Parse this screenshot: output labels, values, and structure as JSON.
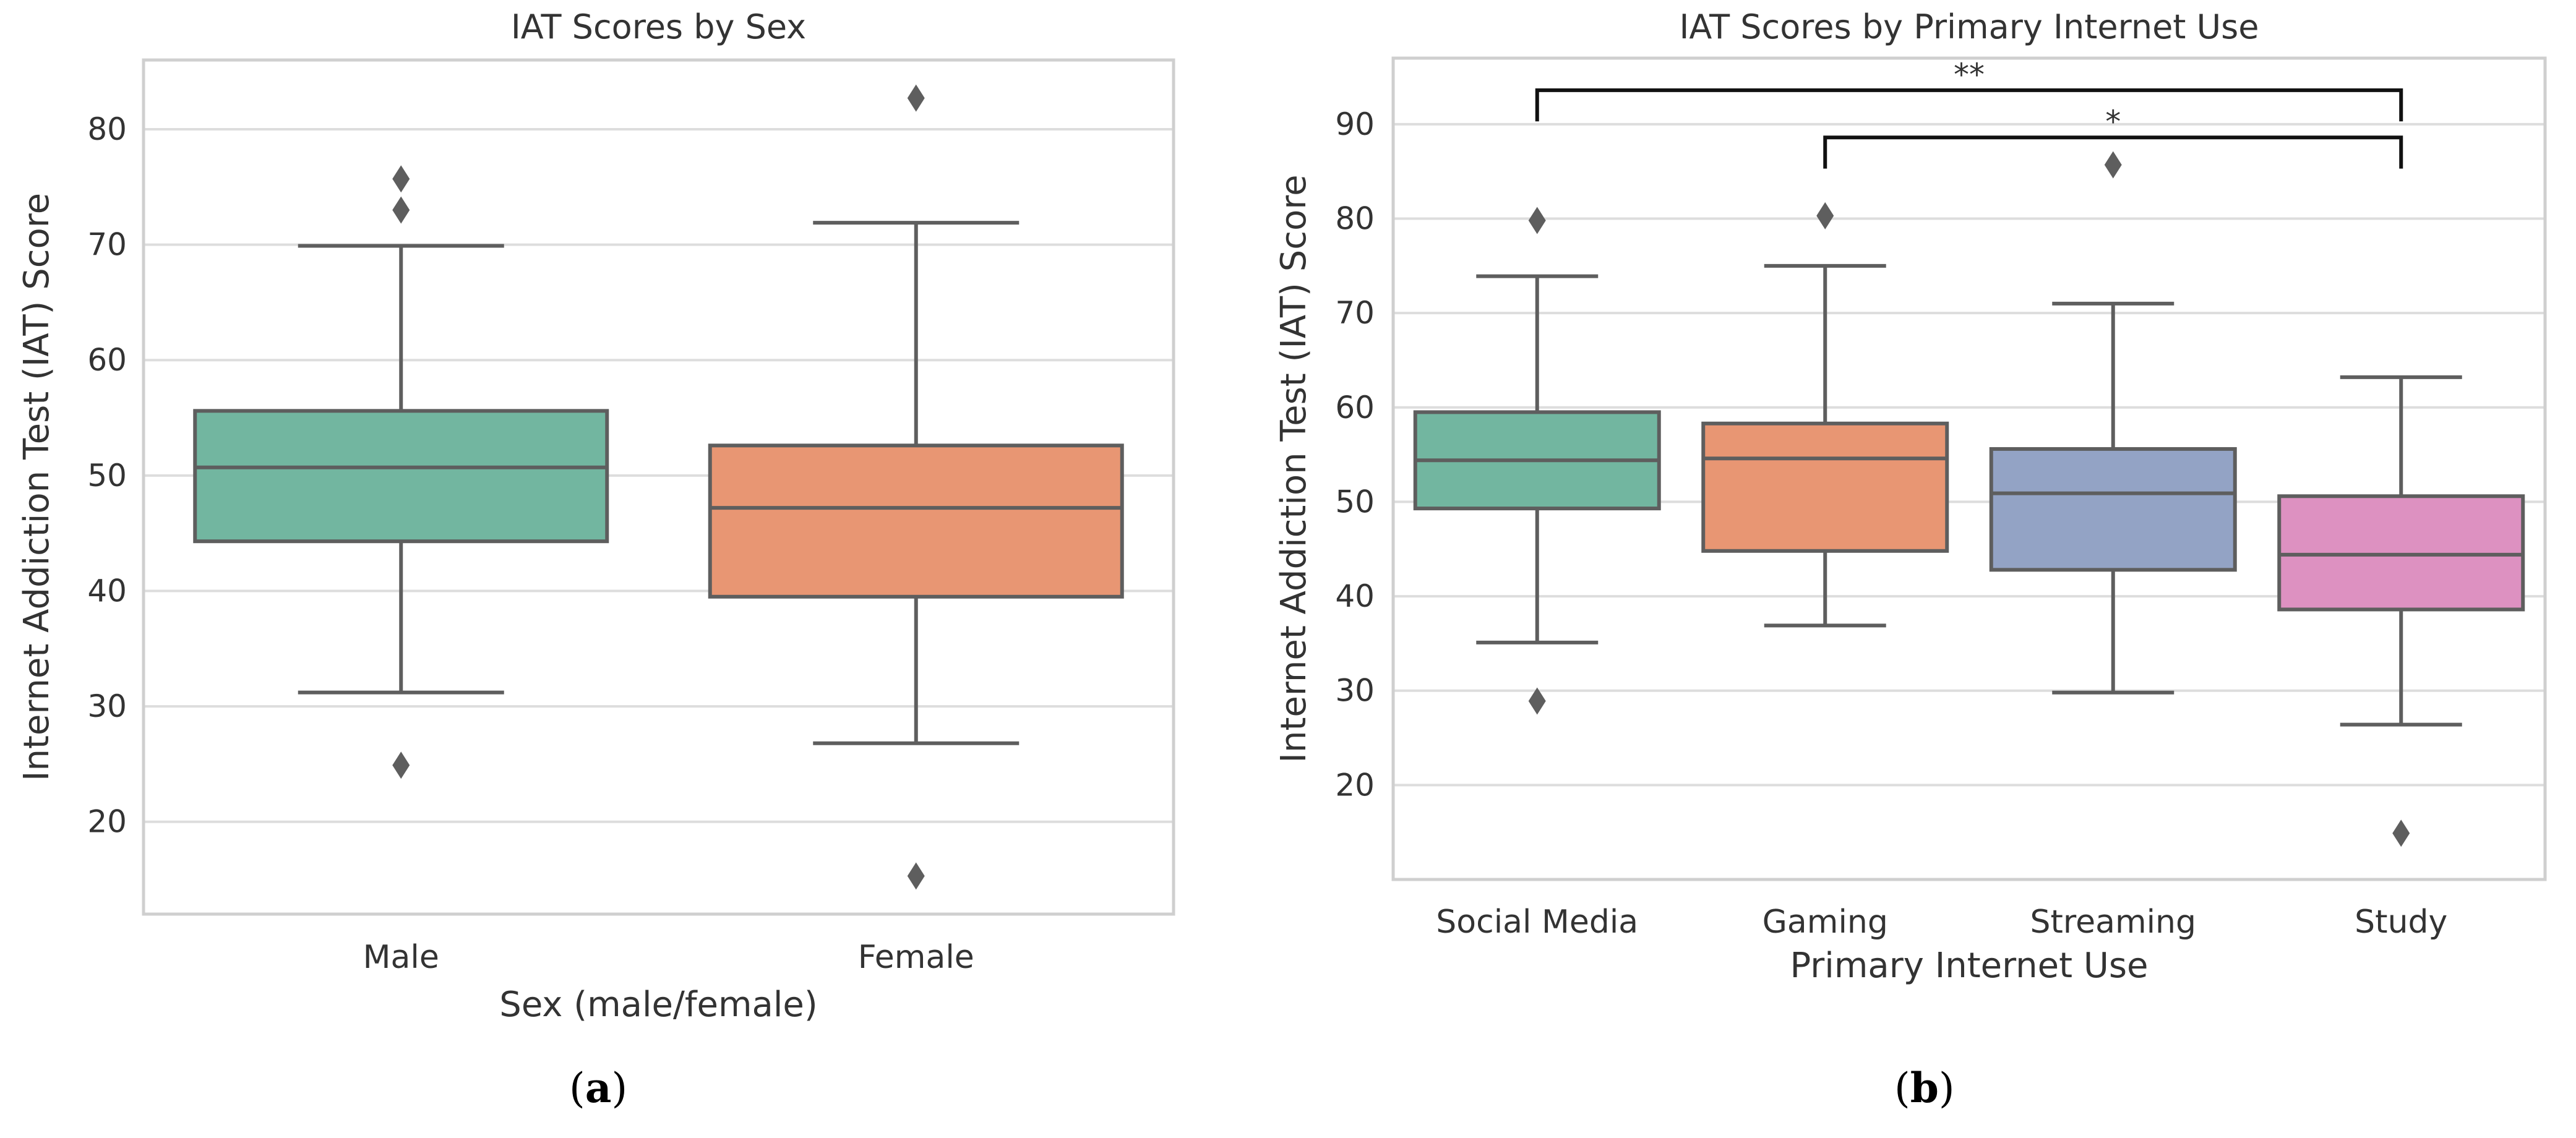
{
  "colors": {
    "green": "#72b6a0",
    "orange": "#e89673",
    "blue": "#93a3c5",
    "pink": "#dd91c1",
    "box_edge": "#5e5e5e",
    "grid": "#dddddd",
    "frame": "#cfcfcf",
    "bracket": "#111111"
  },
  "panel_labels": {
    "a": "a",
    "b": "b"
  },
  "chart_data": [
    {
      "type": "box",
      "title": "IAT Scores by Sex",
      "xlabel": "Sex (male/female)",
      "ylabel": "Internet Addiction Test (IAT) Score",
      "ylim": [
        12,
        86
      ],
      "yticks": [
        20,
        30,
        40,
        50,
        60,
        70,
        80
      ],
      "grid": true,
      "categories": [
        "Male",
        "Female"
      ],
      "colors": [
        "#72b6a0",
        "#e89673"
      ],
      "boxes": [
        {
          "name": "Male",
          "whisker_low": 31.2,
          "q1": 44.3,
          "median": 50.7,
          "q3": 55.6,
          "whisker_high": 69.9,
          "outliers": [
            75.7,
            73.0,
            24.9
          ]
        },
        {
          "name": "Female",
          "whisker_low": 26.8,
          "q1": 39.5,
          "median": 47.2,
          "q3": 52.6,
          "whisker_high": 71.9,
          "outliers": [
            82.7,
            15.3
          ]
        }
      ],
      "annotations": []
    },
    {
      "type": "box",
      "title": "IAT Scores by Primary Internet Use",
      "xlabel": "Primary Internet Use",
      "ylabel": "Internet Addiction Test (IAT) Score",
      "ylim": [
        10,
        97
      ],
      "yticks": [
        20,
        30,
        40,
        50,
        60,
        70,
        80,
        90
      ],
      "grid": true,
      "categories": [
        "Social Media",
        "Gaming",
        "Streaming",
        "Study"
      ],
      "colors": [
        "#72b6a0",
        "#e89673",
        "#93a3c5",
        "#dd91c1"
      ],
      "boxes": [
        {
          "name": "Social Media",
          "whisker_low": 35.1,
          "q1": 49.3,
          "median": 54.4,
          "q3": 59.5,
          "whisker_high": 73.9,
          "outliers": [
            79.8,
            28.9
          ]
        },
        {
          "name": "Gaming",
          "whisker_low": 36.9,
          "q1": 44.8,
          "median": 54.6,
          "q3": 58.3,
          "whisker_high": 75.0,
          "outliers": [
            80.3
          ]
        },
        {
          "name": "Streaming",
          "whisker_low": 29.8,
          "q1": 42.8,
          "median": 50.9,
          "q3": 55.6,
          "whisker_high": 71.0,
          "outliers": [
            85.7
          ]
        },
        {
          "name": "Study",
          "whisker_low": 26.4,
          "q1": 38.6,
          "median": 44.4,
          "q3": 50.6,
          "whisker_high": 63.2,
          "outliers": [
            14.9
          ]
        }
      ],
      "annotations": [
        {
          "from": "Social Media",
          "to": "Study",
          "y": 93.6,
          "tick_drop": 3.3,
          "label": "**"
        },
        {
          "from": "Gaming",
          "to": "Study",
          "y": 88.6,
          "tick_drop": 3.3,
          "label": "*"
        }
      ]
    }
  ]
}
